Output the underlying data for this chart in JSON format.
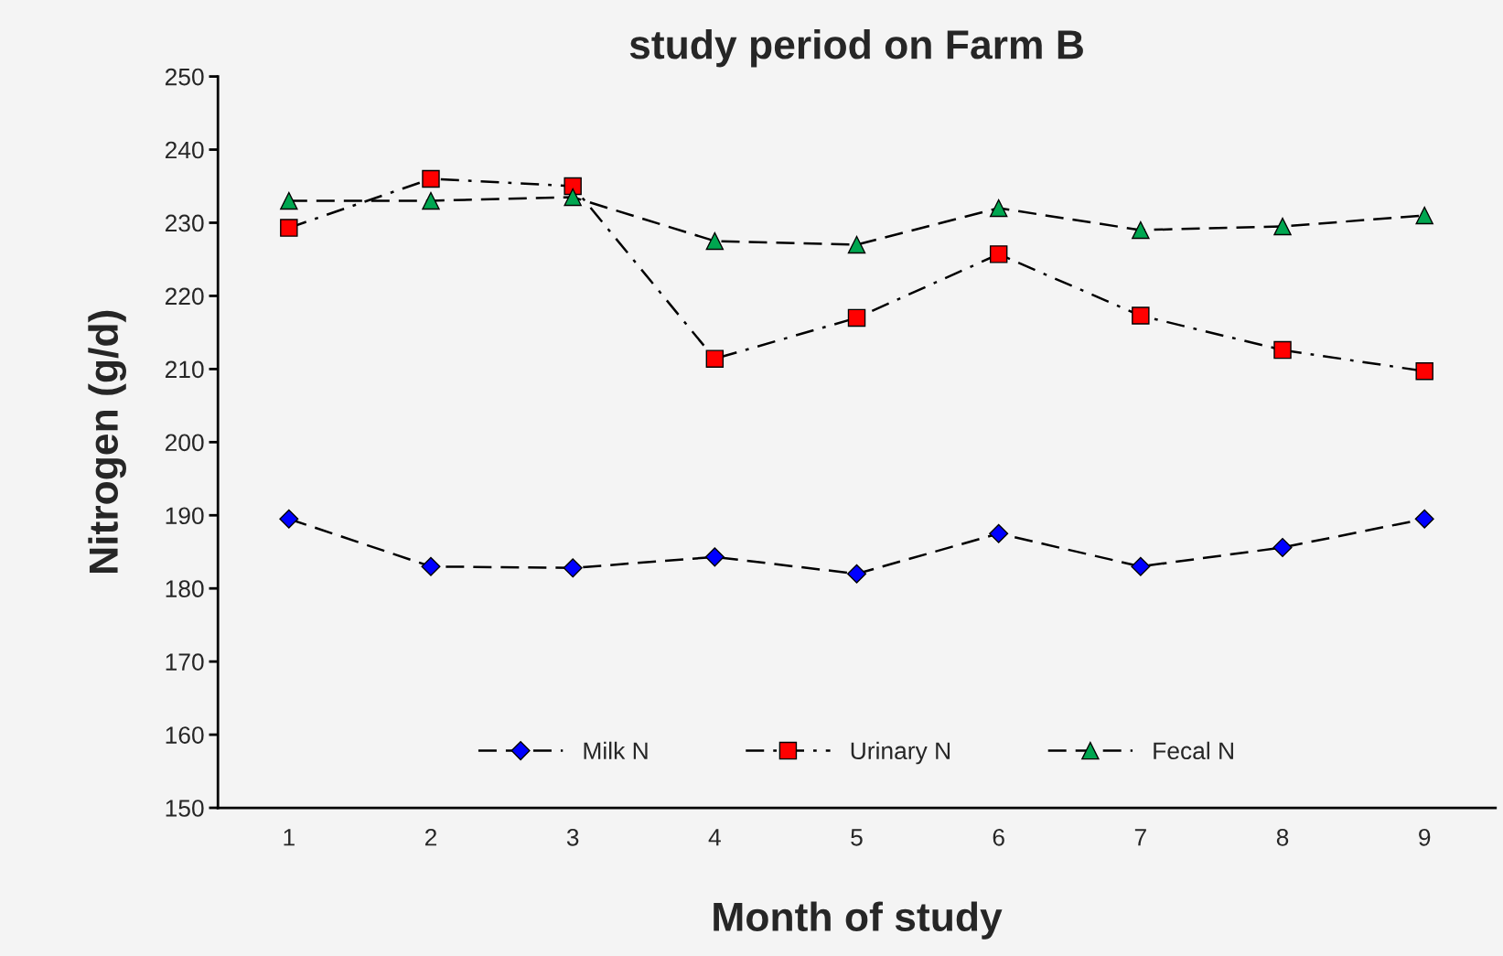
{
  "chart_data": {
    "type": "line",
    "title": "study period on Farm B",
    "xlabel": "Month of study",
    "ylabel": "Nitrogen (g/d)",
    "categories": [
      "1",
      "2",
      "3",
      "4",
      "5",
      "6",
      "7",
      "8",
      "9"
    ],
    "series": [
      {
        "name": "Milk N",
        "color": "#0000ff",
        "marker": "diamond",
        "line_style": "dashed",
        "values": [
          189.5,
          183,
          182.8,
          184.3,
          182,
          187.5,
          183,
          185.6,
          189.5
        ]
      },
      {
        "name": "Urinary N",
        "color": "#ff0000",
        "marker": "square",
        "line_style": "dashdot",
        "values": [
          229.3,
          236,
          235,
          211.4,
          217,
          225.7,
          217.3,
          212.6,
          209.7
        ]
      },
      {
        "name": "Fecal N",
        "color": "#00a650",
        "marker": "triangle",
        "line_style": "dashed",
        "values": [
          233,
          233,
          233.5,
          227.5,
          227,
          232,
          229,
          229.5,
          231
        ]
      }
    ],
    "ylim": [
      150,
      250
    ],
    "yticks": [
      150,
      160,
      170,
      180,
      190,
      200,
      210,
      220,
      230,
      240,
      250
    ],
    "grid": false,
    "legend": "bottom"
  }
}
